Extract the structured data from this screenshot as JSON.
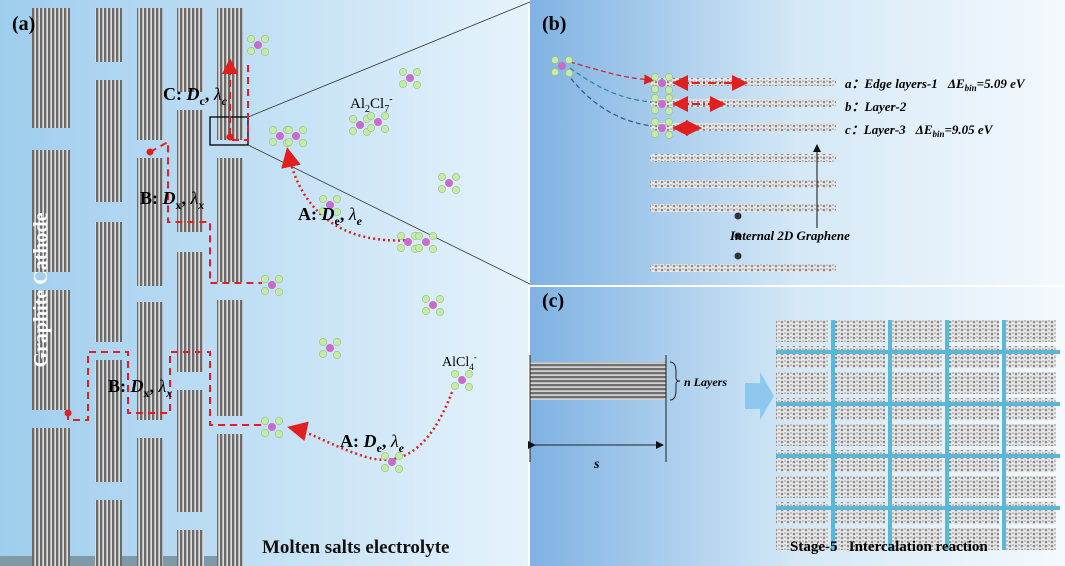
{
  "panel_a": {
    "label": "(a)",
    "side_label": "Graphite Cathode",
    "footer": "Molten salts electrolyte",
    "paths": [
      {
        "prefix": "C: ",
        "var": "D",
        "var_sub": "c",
        "sep": ", ",
        "lam": "λ",
        "lam_sub": "c"
      },
      {
        "prefix": "B: ",
        "var": "D",
        "var_sub": "x",
        "sep": ", ",
        "lam": "λ",
        "lam_sub": "x"
      },
      {
        "prefix": "A: ",
        "var": "D",
        "var_sub": "e",
        "sep": ", ",
        "lam": "λ",
        "lam_sub": "e"
      },
      {
        "prefix": "B: ",
        "var": "D",
        "var_sub": "x",
        "sep": ", ",
        "lam": "λ",
        "lam_sub": "x"
      },
      {
        "prefix": "A: ",
        "var": "D",
        "var_sub": "e",
        "sep": ", ",
        "lam": "λ",
        "lam_sub": "e"
      }
    ],
    "dimer": {
      "el1": "Al",
      "n1": "2",
      "el2": "Cl",
      "n2": "7",
      "charge": "-"
    },
    "monomer": {
      "el1": "Al",
      "el2": "Cl",
      "n2": "4",
      "charge": "-"
    }
  },
  "panel_b": {
    "label": "(b)",
    "layers": [
      {
        "tag": "a",
        "sep": "：",
        "name": "Edge layers-1",
        "symbol": "ΔE",
        "sub": "bin",
        "eq": "=5.09 eV"
      },
      {
        "tag": "b",
        "sep": "：",
        "name": "Layer-2"
      },
      {
        "tag": "c",
        "sep": "：",
        "name": "Layer-3",
        "symbol": "ΔE",
        "sub": "bin",
        "eq": "=9.05 eV"
      }
    ],
    "internal": "Internal 2D Graphene"
  },
  "panel_c": {
    "label": "(c)",
    "layers_note": "n Layers",
    "length": "s",
    "caption": "Stage-5   Intercalation reaction"
  }
}
